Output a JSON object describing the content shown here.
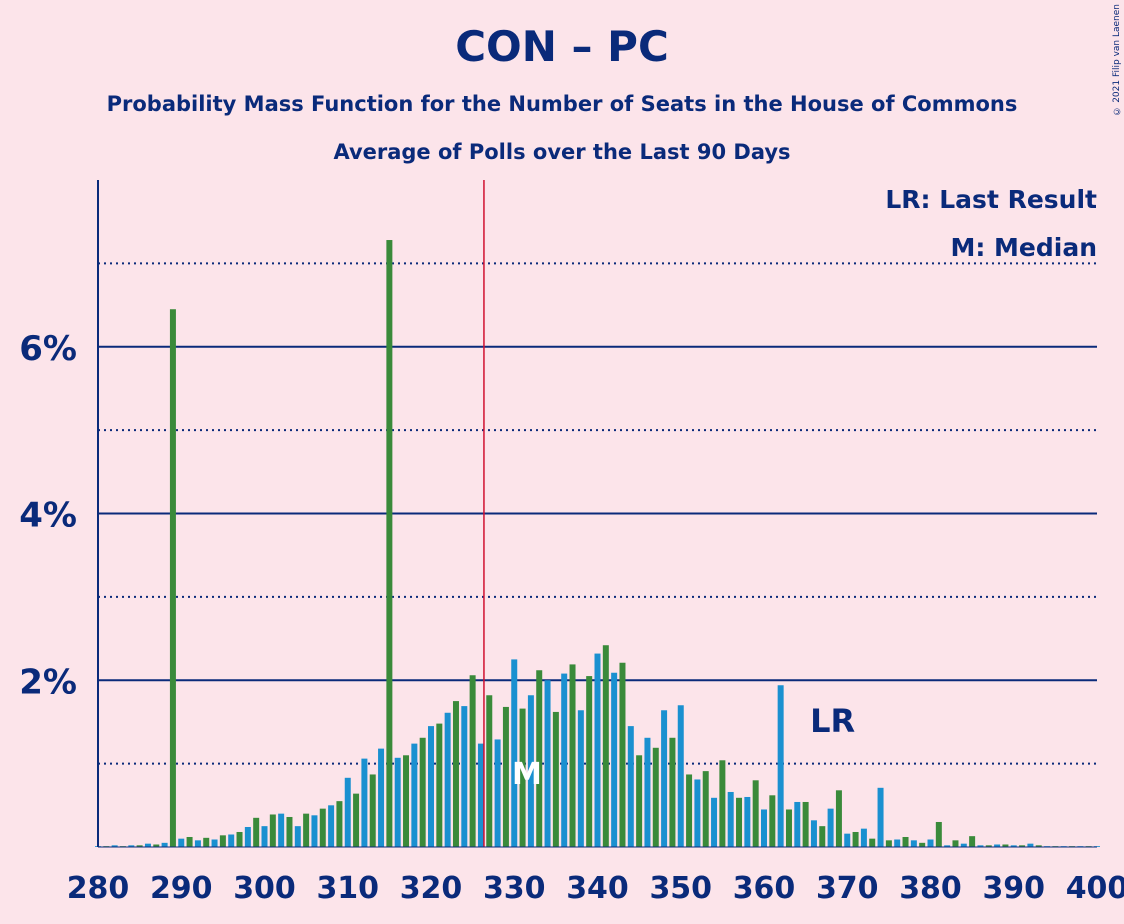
{
  "title": "CON – PC",
  "subtitle": "Probability Mass Function for the Number of Seats in the House of Commons",
  "subtitle2": "Average of Polls over the Last 90 Days",
  "copyright": "© 2021 Filip van Laenen",
  "legend": {
    "lr": "LR: Last Result",
    "median": "M: Median"
  },
  "colors": {
    "background": "#fce4ea",
    "green": "#3a8a3a",
    "blue": "#1a90d0",
    "axis": "#0a2a7a",
    "majority": "#d01030"
  },
  "chart_data": {
    "type": "bar",
    "xlim": [
      280,
      400
    ],
    "ylim": [
      0,
      0.08
    ],
    "x_ticks": [
      280,
      290,
      300,
      310,
      320,
      330,
      340,
      350,
      360,
      370,
      380,
      390,
      400
    ],
    "y_ticks": [
      {
        "value": 0.02,
        "label": "2%"
      },
      {
        "value": 0.04,
        "label": "4%"
      },
      {
        "value": 0.06,
        "label": "6%"
      }
    ],
    "majority_line": 326,
    "last_result": {
      "seat": 368,
      "label": "LR"
    },
    "median": {
      "seat": 332,
      "label": "M"
    },
    "seats": [
      280,
      281,
      282,
      283,
      284,
      285,
      286,
      287,
      288,
      289,
      290,
      291,
      292,
      293,
      294,
      295,
      296,
      297,
      298,
      299,
      300,
      301,
      302,
      303,
      304,
      305,
      306,
      307,
      308,
      309,
      310,
      311,
      312,
      313,
      314,
      315,
      316,
      317,
      318,
      319,
      320,
      321,
      322,
      323,
      324,
      325,
      326,
      327,
      328,
      329,
      330,
      331,
      332,
      333,
      334,
      335,
      336,
      337,
      338,
      339,
      340,
      341,
      342,
      343,
      344,
      345,
      346,
      347,
      348,
      349,
      350,
      351,
      352,
      353,
      354,
      355,
      356,
      357,
      358,
      359,
      360,
      361,
      362,
      363,
      364,
      365,
      366,
      367,
      368,
      369,
      370,
      371,
      372,
      373,
      374,
      375,
      376,
      377,
      378,
      379,
      380,
      381,
      382,
      383,
      384,
      385,
      386,
      387,
      388,
      389,
      390,
      391,
      392,
      393,
      394,
      395,
      396,
      397,
      398,
      399,
      400
    ],
    "values": [
      0.0001,
      0.0001,
      0.0002,
      0.0001,
      0.0002,
      0.0002,
      0.0004,
      0.0003,
      0.0005,
      0.0645,
      0.001,
      0.0012,
      0.0008,
      0.0011,
      0.0009,
      0.0014,
      0.0015,
      0.0018,
      0.0024,
      0.0035,
      0.0025,
      0.0039,
      0.004,
      0.0036,
      0.0025,
      0.004,
      0.0038,
      0.0046,
      0.005,
      0.0055,
      0.0083,
      0.0064,
      0.0106,
      0.0087,
      0.0118,
      0.0728,
      0.0107,
      0.011,
      0.0124,
      0.0131,
      0.0145,
      0.0148,
      0.0161,
      0.0175,
      0.0169,
      0.0206,
      0.0124,
      0.0182,
      0.0129,
      0.0168,
      0.0225,
      0.0166,
      0.0182,
      0.0212,
      0.02,
      0.0162,
      0.0208,
      0.0219,
      0.0164,
      0.0205,
      0.0232,
      0.0242,
      0.0209,
      0.0221,
      0.0145,
      0.011,
      0.0131,
      0.0119,
      0.0164,
      0.0131,
      0.017,
      0.0087,
      0.0081,
      0.0091,
      0.0059,
      0.0104,
      0.0066,
      0.0059,
      0.006,
      0.008,
      0.0045,
      0.0062,
      0.0194,
      0.0045,
      0.0054,
      0.0054,
      0.0032,
      0.0025,
      0.0046,
      0.0068,
      0.0016,
      0.0018,
      0.0022,
      0.001,
      0.0071,
      0.0008,
      0.0009,
      0.0012,
      0.0008,
      0.0005,
      0.0009,
      0.003,
      0.0002,
      0.0008,
      0.0004,
      0.0013,
      0.0002,
      0.0002,
      0.0003,
      0.0003,
      0.0002,
      0.0002,
      0.0004,
      0.0002,
      0.0001,
      0.0001,
      0.0001,
      0.0001,
      0.0001,
      0.0001,
      0.0001
    ]
  }
}
